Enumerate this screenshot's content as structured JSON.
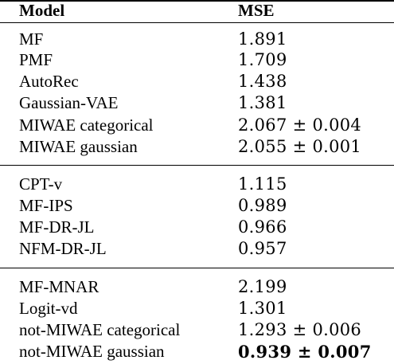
{
  "table": {
    "header": {
      "model": "Model",
      "mse": "MSE"
    },
    "groups": [
      {
        "rows": [
          {
            "model": "MF",
            "mse": "1.891",
            "bold": false
          },
          {
            "model": "PMF",
            "mse": "1.709",
            "bold": false
          },
          {
            "model": "AutoRec",
            "mse": "1.438",
            "bold": false
          },
          {
            "model": "Gaussian-VAE",
            "mse": "1.381",
            "bold": false
          },
          {
            "model": "MIWAE categorical",
            "mse": "2.067 ± 0.004",
            "bold": false
          },
          {
            "model": "MIWAE gaussian",
            "mse": "2.055 ± 0.001",
            "bold": false
          }
        ]
      },
      {
        "rows": [
          {
            "model": "CPT-v",
            "mse": "1.115",
            "bold": false
          },
          {
            "model": "MF-IPS",
            "mse": "0.989",
            "bold": false
          },
          {
            "model": "MF-DR-JL",
            "mse": "0.966",
            "bold": false
          },
          {
            "model": "NFM-DR-JL",
            "mse": "0.957",
            "bold": false
          }
        ]
      },
      {
        "rows": [
          {
            "model": "MF-MNAR",
            "mse": "2.199",
            "bold": false
          },
          {
            "model": "Logit-vd",
            "mse": "1.301",
            "bold": false
          },
          {
            "model": "not-MIWAE categorical",
            "mse": "1.293 ± 0.006",
            "bold": false
          },
          {
            "model": "not-MIWAE gaussian",
            "mse": "0.939 ± 0.007",
            "bold": true
          }
        ]
      }
    ]
  }
}
